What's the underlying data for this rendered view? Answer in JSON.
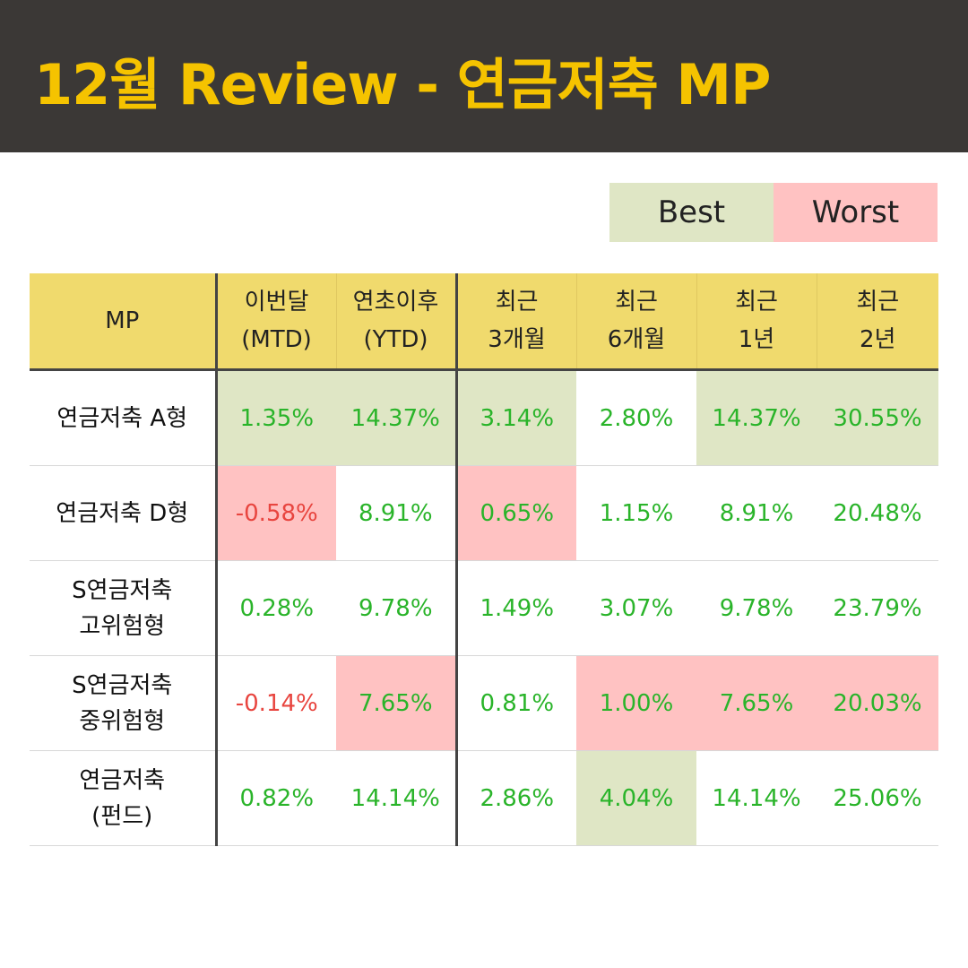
{
  "header": {
    "title": "12월 Review - 연금저축 MP"
  },
  "legend": {
    "best_label": "Best",
    "worst_label": "Worst"
  },
  "colors": {
    "best": "#dfe6c5",
    "worst": "#ffc2c2",
    "positive_text": "#2ab42a",
    "negative_text": "#e8453f",
    "header_bg": "#3b3836",
    "title_text": "#f5c300",
    "table_header_bg": "#f0da6d"
  },
  "table": {
    "columns": [
      {
        "line1": "MP",
        "line2": ""
      },
      {
        "line1": "이번달",
        "line2": "(MTD)"
      },
      {
        "line1": "연초이후",
        "line2": "(YTD)"
      },
      {
        "line1": "최근",
        "line2": "3개월"
      },
      {
        "line1": "최근",
        "line2": "6개월"
      },
      {
        "line1": "최근",
        "line2": "1년"
      },
      {
        "line1": "최근",
        "line2": "2년"
      }
    ],
    "rows": [
      {
        "name1": "연금저축 A형",
        "name2": "",
        "values": [
          "1.35%",
          "14.37%",
          "3.14%",
          "2.80%",
          "14.37%",
          "30.55%"
        ],
        "highlight": [
          "best",
          "best",
          "best",
          "",
          "best",
          "best"
        ]
      },
      {
        "name1": "연금저축 D형",
        "name2": "",
        "values": [
          "-0.58%",
          "8.91%",
          "0.65%",
          "1.15%",
          "8.91%",
          "20.48%"
        ],
        "highlight": [
          "worst",
          "",
          "worst",
          "",
          "",
          ""
        ]
      },
      {
        "name1": "S연금저축",
        "name2": "고위험형",
        "values": [
          "0.28%",
          "9.78%",
          "1.49%",
          "3.07%",
          "9.78%",
          "23.79%"
        ],
        "highlight": [
          "",
          "",
          "",
          "",
          "",
          ""
        ]
      },
      {
        "name1": "S연금저축",
        "name2": "중위험형",
        "values": [
          "-0.14%",
          "7.65%",
          "0.81%",
          "1.00%",
          "7.65%",
          "20.03%"
        ],
        "highlight": [
          "",
          "worst",
          "",
          "worst",
          "worst",
          "worst"
        ]
      },
      {
        "name1": "연금저축",
        "name2": "(펀드)",
        "values": [
          "0.82%",
          "14.14%",
          "2.86%",
          "4.04%",
          "14.14%",
          "25.06%"
        ],
        "highlight": [
          "",
          "",
          "",
          "best",
          "",
          ""
        ]
      }
    ]
  }
}
